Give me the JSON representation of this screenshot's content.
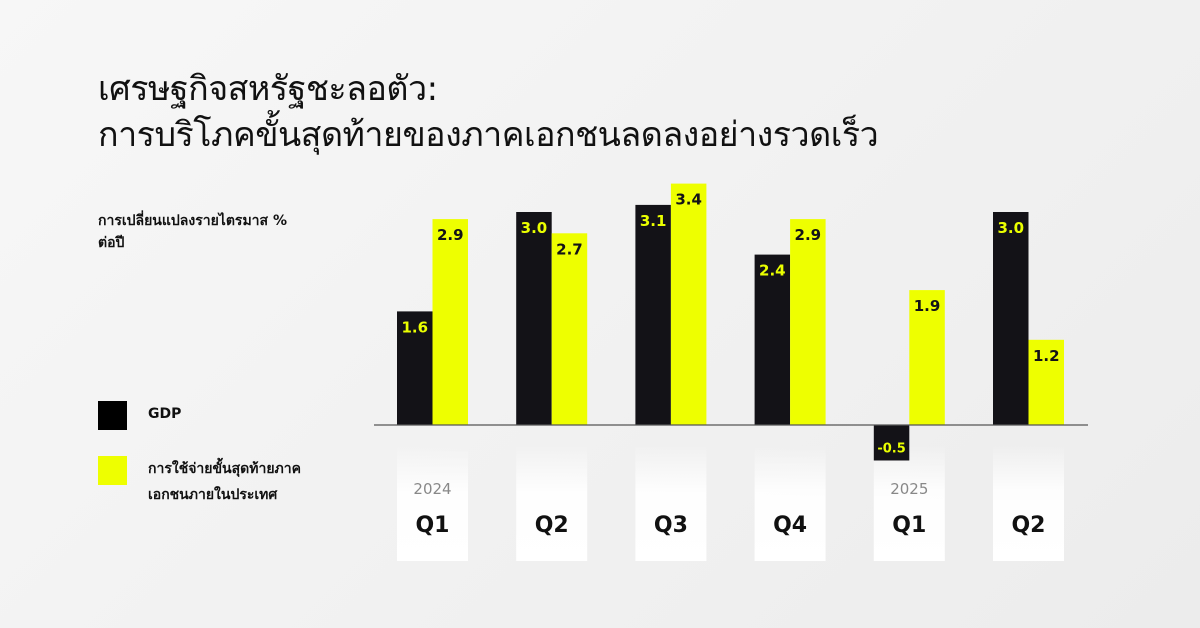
{
  "title_lines": [
    "เศรษฐกิจสหรัฐชะลอตัว:",
    "การบริโภคขั้นสุดท้ายของภาคเอกชนลดลงอย่างรวดเร็ว"
  ],
  "chart_data": {
    "type": "bar",
    "ylabel": "การเปลี่ยนแปลงรายไตรมาส % ต่อปี",
    "categories": [
      {
        "year": "2024",
        "quarter": "Q1"
      },
      {
        "year": "",
        "quarter": "Q2"
      },
      {
        "year": "",
        "quarter": "Q3"
      },
      {
        "year": "",
        "quarter": "Q4"
      },
      {
        "year": "2025",
        "quarter": "Q1"
      },
      {
        "year": "",
        "quarter": "Q2"
      }
    ],
    "series": [
      {
        "name": "GDP",
        "color": "#131217",
        "label_color": "#eaff00",
        "values": [
          1.6,
          3.0,
          3.1,
          2.4,
          -0.5,
          3.0
        ],
        "labels": [
          "1.6",
          "3.0",
          "3.1",
          "2.4",
          "-0.5",
          "3.0"
        ]
      },
      {
        "name": "การใช้จ่ายขั้นสุดท้ายภาคเอกชนภายในประเทศ",
        "color": "#eeff00",
        "label_color": "#131217",
        "values": [
          2.9,
          2.7,
          3.4,
          2.9,
          1.9,
          1.2
        ],
        "labels": [
          "2.9",
          "2.7",
          "3.4",
          "2.9",
          "1.9",
          "1.2"
        ]
      }
    ],
    "legend_placement": "left",
    "grid": false
  }
}
